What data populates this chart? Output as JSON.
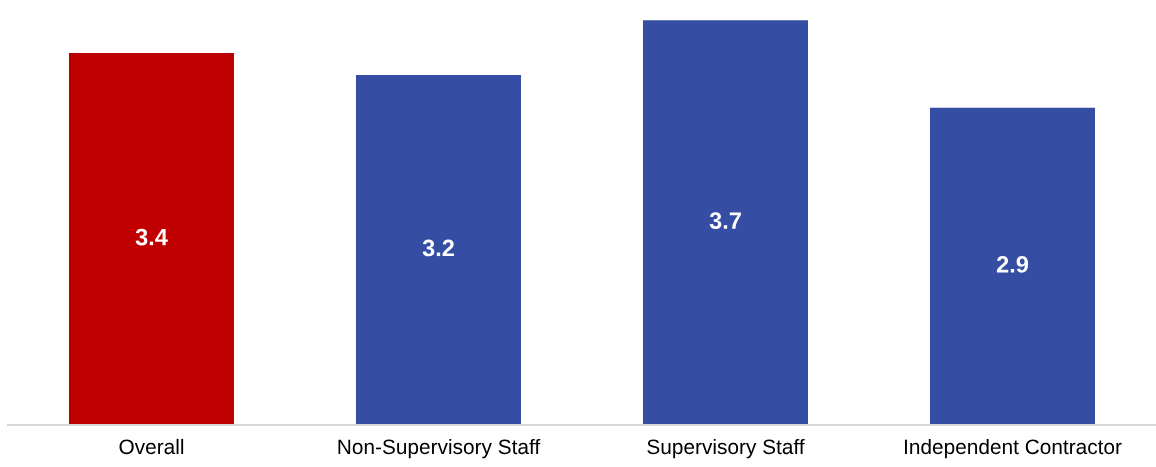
{
  "chart_data": {
    "type": "bar",
    "categories": [
      "Overall",
      "Non-Supervisory Staff",
      "Supervisory Staff",
      "Independent Contractor"
    ],
    "values": [
      3.4,
      3.2,
      3.7,
      2.9
    ],
    "colors": [
      "#c00000",
      "#354ea3",
      "#354ea3",
      "#354ea3"
    ],
    "data_labels": true,
    "grid": false,
    "legend": false,
    "tick_labels": "x"
  }
}
